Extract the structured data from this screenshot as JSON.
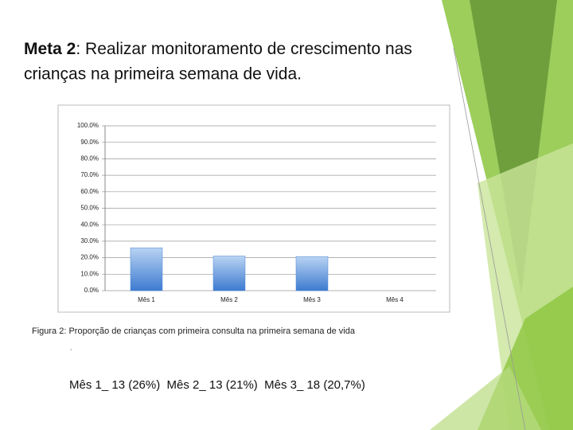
{
  "chart_data": {
    "type": "bar",
    "title_lead": "Meta 2",
    "title": ": Realizar monitoramento de crescimento nas crianças na primeira semana de vida.",
    "categories": [
      "Mês 1",
      "Mês 2",
      "Mês 3",
      "Mês 4"
    ],
    "values": [
      26,
      21,
      20.7,
      null
    ],
    "color": "#4a86d4",
    "ylim": [
      0,
      100
    ],
    "yticks": [
      {
        "value": 0,
        "label": "0.0%"
      },
      {
        "value": 10,
        "label": "10.0%"
      },
      {
        "value": 20,
        "label": "20.0%"
      },
      {
        "value": 30,
        "label": "30.0%"
      },
      {
        "value": 40,
        "label": "40.0%"
      },
      {
        "value": 50,
        "label": "50.0%"
      },
      {
        "value": 60,
        "label": "60.0%"
      },
      {
        "value": 70,
        "label": "70.0%"
      },
      {
        "value": 80,
        "label": "80.0%"
      },
      {
        "value": 90,
        "label": "90.0%"
      },
      {
        "value": 100,
        "label": "100.0%"
      }
    ],
    "grid": true,
    "caption": "Figura 2: Proporção de crianças com primeira consulta na primeira semana de vida",
    "note": ".",
    "summary": "Mês 1_ 13 (26%)  Mês 2_ 13 (21%)  Mês 3_ 18 (20,7%)"
  }
}
